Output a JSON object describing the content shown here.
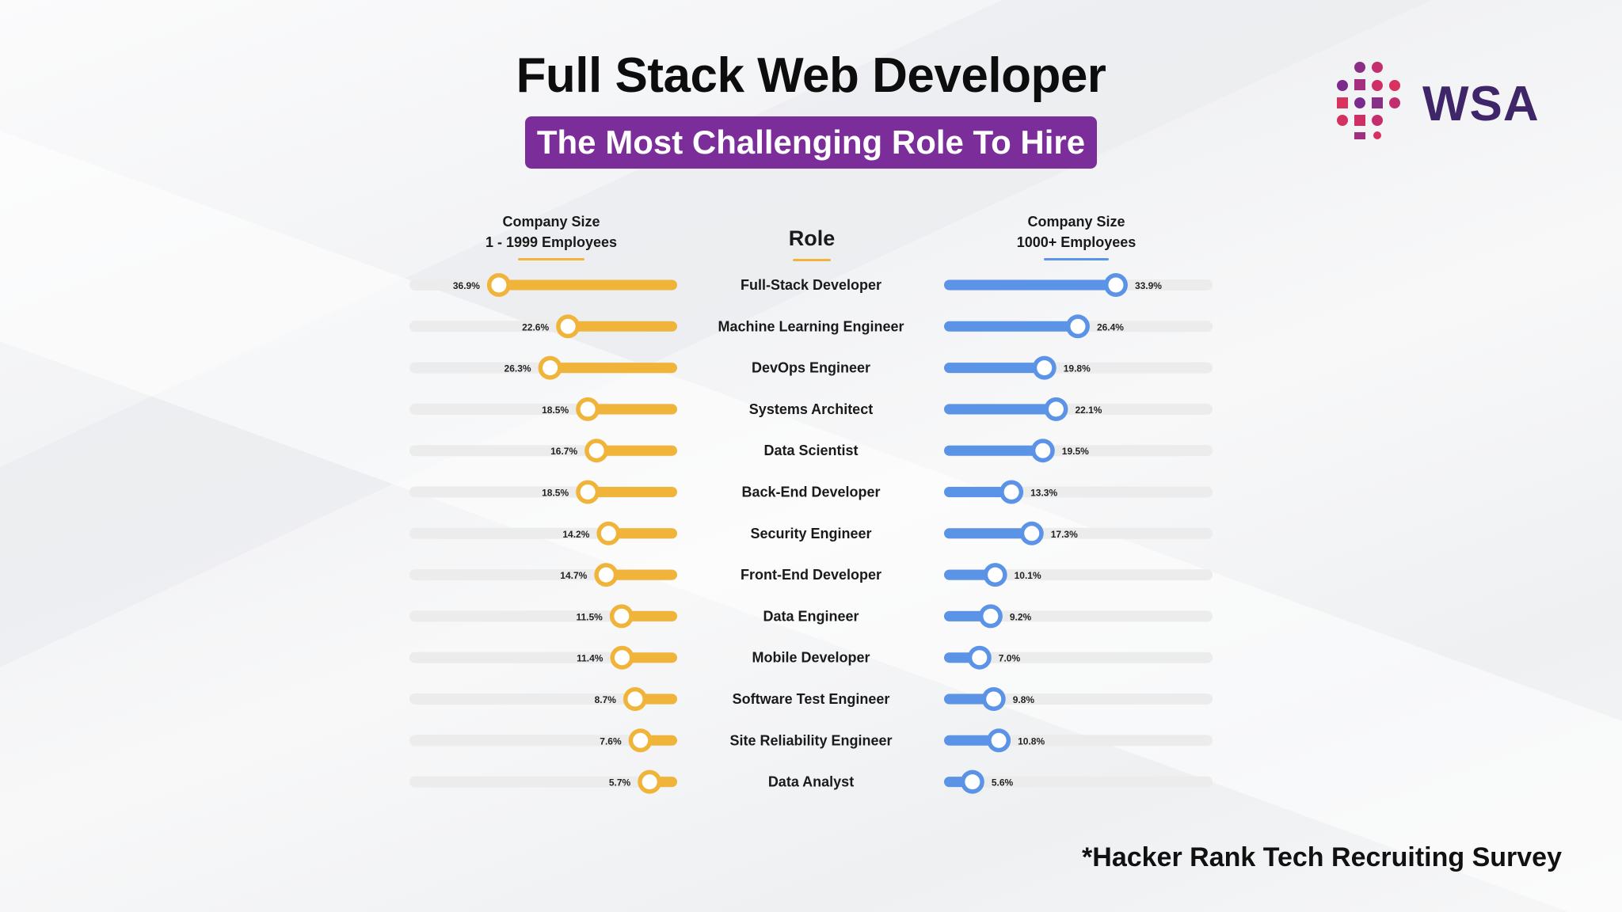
{
  "header": {
    "title": "Full Stack Web Developer",
    "subtitle": "The Most Challenging Role To Hire"
  },
  "logo": {
    "text": "WSA",
    "icon": "dot-grid-logo-icon"
  },
  "footer": {
    "source": "*Hacker Rank Tech Recruiting Survey"
  },
  "chart_data": {
    "type": "bar",
    "title": "Full Stack Web Developer",
    "subtitle": "The Most Challenging Role To Hire",
    "category_header": "Role",
    "categories": [
      "Full-Stack Developer",
      "Machine Learning Engineer",
      "DevOps Engineer",
      "Systems Architect",
      "Data Scientist",
      "Back-End Developer",
      "Security Engineer",
      "Front-End Developer",
      "Data Engineer",
      "Mobile Developer",
      "Software Test Engineer",
      "Site Reliability Engineer",
      "Data Analyst"
    ],
    "series": [
      {
        "name_line1": "Company Size",
        "name_line2": "1 - 1999 Employees",
        "color": "#f0b43a",
        "direction": "left",
        "values": [
          36.9,
          22.6,
          26.3,
          18.5,
          16.7,
          18.5,
          14.2,
          14.7,
          11.5,
          11.4,
          8.7,
          7.6,
          5.7
        ],
        "labels": [
          "36.9%",
          "22.6%",
          "26.3%",
          "18.5%",
          "16.7%",
          "18.5%",
          "14.2%",
          "14.7%",
          "11.5%",
          "11.4%",
          "8.7%",
          "7.6%",
          "5.7%"
        ]
      },
      {
        "name_line1": "Company Size",
        "name_line2": "1000+ Employees",
        "color": "#5b93e6",
        "direction": "right",
        "values": [
          33.9,
          26.4,
          19.8,
          22.1,
          19.5,
          13.3,
          17.3,
          10.1,
          9.2,
          7.0,
          9.8,
          10.8,
          5.6
        ],
        "labels": [
          "33.9%",
          "26.4%",
          "19.8%",
          "22.1%",
          "19.5%",
          "13.3%",
          "17.3%",
          "10.1%",
          "9.2%",
          "7.0%",
          "9.8%",
          "10.8%",
          "5.6%"
        ]
      }
    ],
    "colors": {
      "track": "#ececec",
      "left_accent": "#f0b43a",
      "right_accent": "#5b93e6",
      "header_bg": "#7b2d9a"
    }
  }
}
